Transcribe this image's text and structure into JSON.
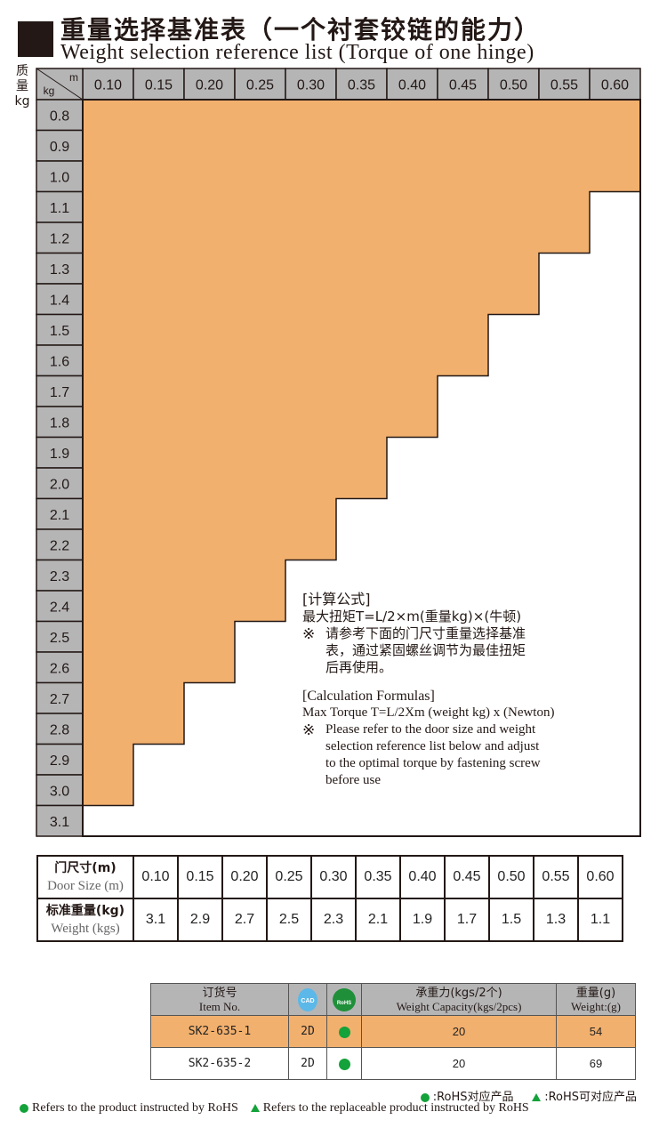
{
  "header": {
    "title_cn": "重量选择基准表（一个衬套铰链的能力）",
    "title_en": "Weight selection reference list (Torque of one hinge)"
  },
  "side_label": [
    "质",
    "量",
    "kg"
  ],
  "chart_data": {
    "type": "table",
    "corner_row_label": "kg",
    "corner_col_label": "m",
    "columns": [
      "0.10",
      "0.15",
      "0.20",
      "0.25",
      "0.30",
      "0.35",
      "0.40",
      "0.45",
      "0.50",
      "0.55",
      "0.60"
    ],
    "rows": [
      "0.8",
      "0.9",
      "1.0",
      "1.1",
      "1.2",
      "1.3",
      "1.4",
      "1.5",
      "1.6",
      "1.7",
      "1.8",
      "1.9",
      "2.0",
      "2.1",
      "2.2",
      "2.3",
      "2.4",
      "2.5",
      "2.6",
      "2.7",
      "2.8",
      "2.9",
      "3.0",
      "3.1"
    ],
    "max_weight_per_column": [
      3.0,
      2.8,
      2.6,
      2.4,
      2.2,
      2.0,
      1.8,
      1.6,
      1.4,
      1.2,
      1.0
    ],
    "fill_color": "#f2b06e",
    "header_color": "#b5b5b6"
  },
  "formula": {
    "cn_title": "[计算公式]",
    "cn_line1": "最大扭矩T=L/2×m(重量kg)×(牛顿)",
    "cn_mark": "※",
    "cn_note": [
      "请参考下面的门尺寸重量选择基准",
      "表，通过紧固螺丝调节为最佳扭矩",
      "后再使用。"
    ],
    "en_title": "[Calculation Formulas]",
    "en_line1": "Max Torque T=L/2Xm (weight kg) x (Newton)",
    "en_mark": "※",
    "en_note": [
      "Please refer to the door size and weight",
      "selection reference list below and adjust",
      "to the optimal torque by fastening screw",
      "before use"
    ]
  },
  "door_table": {
    "row1_label_cn": "门尺寸(m)",
    "row1_label_en": "Door Size (m)",
    "row2_label_cn": "标准重量(kg)",
    "row2_label_en": "Weight (kgs)",
    "door_sizes": [
      "0.10",
      "0.15",
      "0.20",
      "0.25",
      "0.30",
      "0.35",
      "0.40",
      "0.45",
      "0.50",
      "0.55",
      "0.60"
    ],
    "weights": [
      "3.1",
      "2.9",
      "2.7",
      "2.5",
      "2.3",
      "2.1",
      "1.9",
      "1.7",
      "1.5",
      "1.3",
      "1.1"
    ]
  },
  "item_table": {
    "h_item_cn": "订货号",
    "h_item_en": "Item No.",
    "h_cad": "CAD",
    "h_rohs": "RoHS",
    "h_cap_cn": "承重力(kgs/2个)",
    "h_cap_en": "Weight Capacity(kgs/2pcs)",
    "h_wt_cn": "重量(g)",
    "h_wt_en": "Weight:(g)",
    "rows": [
      {
        "item": "SK2-635-1",
        "cad": "2D",
        "capacity": "20",
        "weight": "54"
      },
      {
        "item": "SK2-635-2",
        "cad": "2D",
        "capacity": "20",
        "weight": "69"
      }
    ]
  },
  "legend": {
    "cn_dot": ":RoHS对应产品",
    "cn_tri": ":RoHS可对应产品",
    "en_dot": "Refers to the product instructed by RoHS",
    "en_tri": "Refers to the replaceable product instructed by RoHS"
  }
}
